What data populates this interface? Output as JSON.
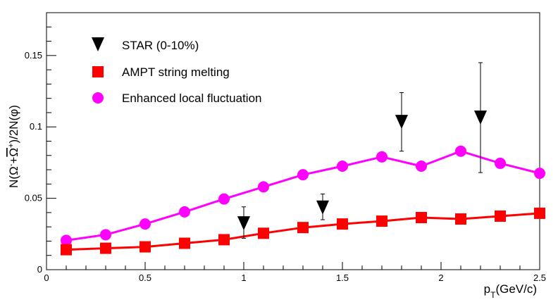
{
  "chart_data": {
    "type": "scatter",
    "xlabel": "p_T(GeV/c)",
    "ylabel": "N(Ω⁻+Ω̄⁺)/2N(φ)",
    "xlim": [
      0,
      2.5
    ],
    "ylim": [
      0,
      0.18
    ],
    "x_ticks": [
      0,
      0.5,
      1,
      1.5,
      2,
      2.5
    ],
    "x_tick_labels": [
      "0",
      "0.5",
      "1",
      "1.5",
      "2",
      "2.5"
    ],
    "y_ticks": [
      0,
      0.05,
      0.1,
      0.15
    ],
    "y_tick_labels": [
      "0",
      "0.05",
      "0.1",
      "0.15"
    ],
    "grid": false,
    "legend_position": "top-left",
    "series": [
      {
        "name": "STAR (0-10%)",
        "marker": "triangle-down",
        "color": "#000000",
        "x": [
          1.0,
          1.4,
          1.8,
          2.2
        ],
        "y": [
          0.033,
          0.044,
          0.104,
          0.107
        ],
        "err_low": [
          0.011,
          0.009,
          0.021,
          0.039
        ],
        "err_high": [
          0.011,
          0.009,
          0.02,
          0.038
        ]
      },
      {
        "name": "AMPT string melting",
        "marker": "square",
        "color": "#ff0000",
        "line": true,
        "x": [
          0.1,
          0.3,
          0.5,
          0.7,
          0.9,
          1.1,
          1.3,
          1.5,
          1.7,
          1.9,
          2.1,
          2.3,
          2.5
        ],
        "y": [
          0.014,
          0.015,
          0.016,
          0.0185,
          0.021,
          0.0255,
          0.0295,
          0.032,
          0.034,
          0.0365,
          0.0355,
          0.0375,
          0.0395
        ]
      },
      {
        "name": "Enhanced local fluctuation",
        "marker": "circle",
        "color": "#ff00ff",
        "line": true,
        "x": [
          0.1,
          0.3,
          0.5,
          0.7,
          0.9,
          1.1,
          1.3,
          1.5,
          1.7,
          1.9,
          2.1,
          2.3,
          2.5
        ],
        "y": [
          0.0205,
          0.0245,
          0.032,
          0.0405,
          0.0495,
          0.058,
          0.0665,
          0.0725,
          0.079,
          0.0725,
          0.083,
          0.0745,
          0.0675
        ]
      }
    ]
  }
}
